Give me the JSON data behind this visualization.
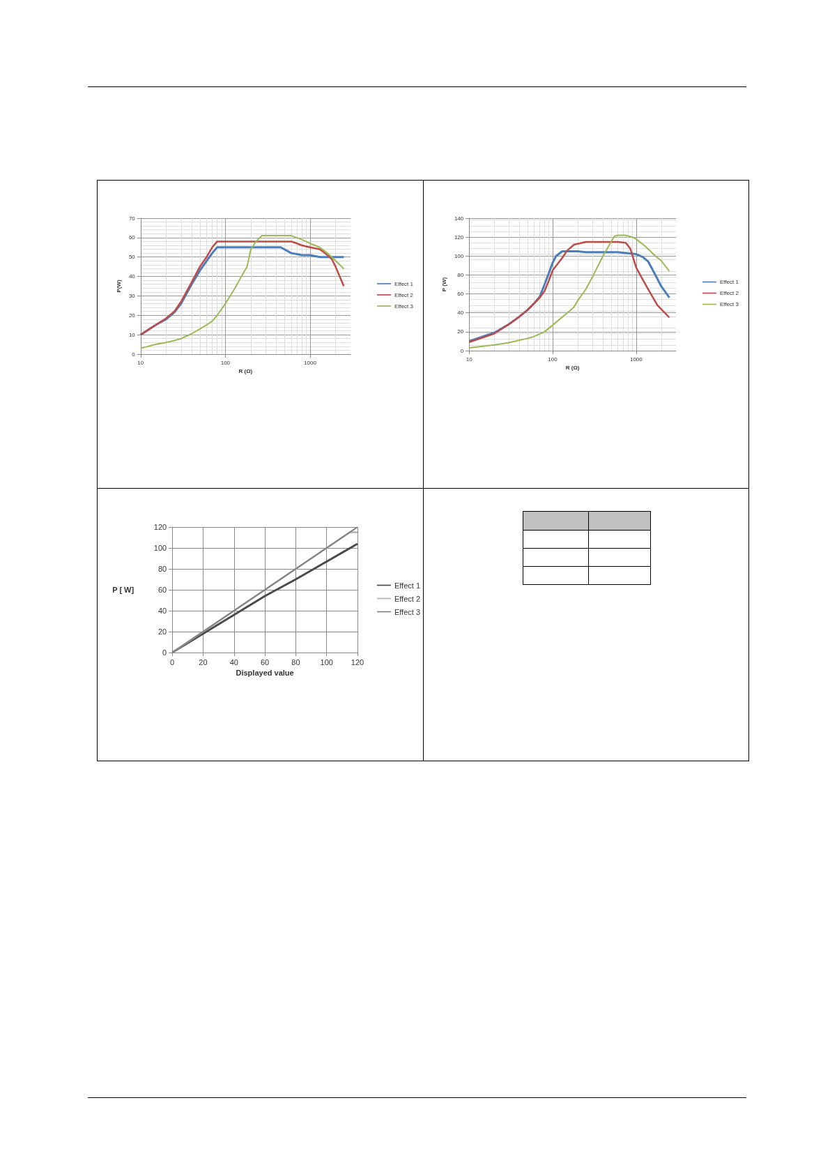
{
  "chart_data": [
    {
      "type": "line",
      "xlabel": "R (Ω)",
      "ylabel": "P(W)",
      "log": "x",
      "xlim": [
        10,
        3000
      ],
      "xticks": [
        10,
        100,
        1000
      ],
      "ylim": [
        0,
        70
      ],
      "yticks": [
        0,
        10,
        20,
        30,
        40,
        50,
        60,
        70
      ],
      "grid": true,
      "legend": "right",
      "marker": "none",
      "line_style": "solid",
      "series": [
        {
          "name": "Effect 1",
          "color": "#4a7ebb",
          "x": [
            10,
            15,
            20,
            25,
            30,
            40,
            50,
            60,
            70,
            80,
            90,
            100,
            200,
            300,
            450,
            600,
            700,
            800,
            1000,
            1300,
            1800,
            2500
          ],
          "values": [
            10,
            15,
            18,
            21.5,
            26,
            36,
            43,
            48,
            52,
            55,
            55,
            55,
            55,
            55,
            55,
            52,
            51.5,
            51,
            51,
            50,
            50,
            50
          ]
        },
        {
          "name": "Effect 2",
          "color": "#be4b48",
          "x": [
            10,
            15,
            20,
            25,
            30,
            40,
            50,
            60,
            70,
            80,
            90,
            100,
            200,
            400,
            600,
            700,
            800,
            1000,
            1300,
            1500,
            1800,
            2000,
            2500
          ],
          "values": [
            10,
            15,
            18.5,
            22,
            27,
            37,
            45,
            50,
            55,
            58,
            58,
            58,
            58,
            58,
            58,
            57,
            56,
            55,
            54,
            52,
            49,
            45,
            35
          ]
        },
        {
          "name": "Effect 3",
          "color": "#98b954",
          "x": [
            10,
            15,
            20,
            25,
            30,
            40,
            50,
            60,
            70,
            80,
            100,
            130,
            150,
            180,
            200,
            230,
            270,
            300,
            400,
            600,
            800,
            1000,
            1300,
            1500,
            1800,
            2500
          ],
          "values": [
            3,
            5,
            6,
            7,
            8,
            10.5,
            13,
            15,
            17,
            20,
            26,
            34,
            39,
            45,
            54,
            58,
            61,
            61,
            61,
            61,
            59,
            57,
            55,
            53,
            50,
            44
          ]
        }
      ]
    },
    {
      "type": "line",
      "xlabel": "R (Ω)",
      "ylabel": "P (W)",
      "log": "x",
      "xlim": [
        10,
        3000
      ],
      "xticks": [
        10,
        100,
        1000
      ],
      "ylim": [
        0,
        140
      ],
      "yticks": [
        0,
        20,
        40,
        60,
        80,
        100,
        120,
        140
      ],
      "grid": true,
      "legend": "right",
      "marker": "none",
      "line_style": "solid",
      "series": [
        {
          "name": "Effect 1",
          "color": "#4a7ebb",
          "x": [
            10,
            20,
            30,
            40,
            50,
            60,
            70,
            80,
            90,
            100,
            110,
            130,
            200,
            250,
            400,
            600,
            800,
            1000,
            1200,
            1400,
            1700,
            2000,
            2500
          ],
          "values": [
            10,
            19,
            28,
            36,
            43,
            50,
            57,
            70,
            82,
            93,
            100,
            105,
            105,
            104,
            104,
            104,
            103,
            102,
            99,
            94,
            80,
            68,
            56
          ]
        },
        {
          "name": "Effect 2",
          "color": "#be4b48",
          "x": [
            10,
            20,
            30,
            40,
            50,
            60,
            70,
            80,
            90,
            100,
            130,
            150,
            180,
            250,
            400,
            600,
            750,
            850,
            1000,
            1200,
            1500,
            1800,
            2500
          ],
          "values": [
            9,
            18,
            28,
            36,
            43,
            50,
            56,
            63,
            74,
            85,
            98,
            106,
            112,
            115,
            115,
            115,
            114,
            108,
            88,
            75,
            60,
            48,
            35
          ]
        },
        {
          "name": "Effect 3",
          "color": "#98b954",
          "x": [
            10,
            20,
            30,
            40,
            50,
            60,
            80,
            100,
            150,
            180,
            200,
            250,
            300,
            400,
            500,
            550,
            600,
            750,
            900,
            1000,
            1300,
            1700,
            2000,
            2500
          ],
          "values": [
            3,
            6,
            8.5,
            11,
            13,
            15,
            20,
            27,
            40,
            46,
            53,
            65,
            78,
            100,
            115,
            121,
            122,
            122,
            120,
            118,
            110,
            100,
            95,
            84
          ]
        }
      ]
    },
    {
      "type": "line",
      "xlabel": "Displayed value",
      "ylabel": "P [ W]",
      "xlim": [
        0,
        120
      ],
      "xticks": [
        0,
        20,
        40,
        60,
        80,
        100,
        120
      ],
      "ylim": [
        0,
        120
      ],
      "yticks": [
        0,
        20,
        40,
        60,
        80,
        100,
        120
      ],
      "grid": true,
      "legend": "right",
      "marker": "none",
      "line_style": "solid",
      "series": [
        {
          "name": "Effect 1",
          "color": "#4a4a4a",
          "x": [
            0,
            60,
            80,
            120
          ],
          "values": [
            0,
            54,
            70,
            104
          ]
        },
        {
          "name": "Effect 2",
          "color": "#b4b4b4",
          "x": [
            0,
            115,
            120
          ],
          "values": [
            0,
            115,
            115
          ]
        },
        {
          "name": "Effect 3",
          "color": "#808080",
          "x": [
            0,
            120
          ],
          "values": [
            0,
            120
          ]
        }
      ]
    }
  ]
}
